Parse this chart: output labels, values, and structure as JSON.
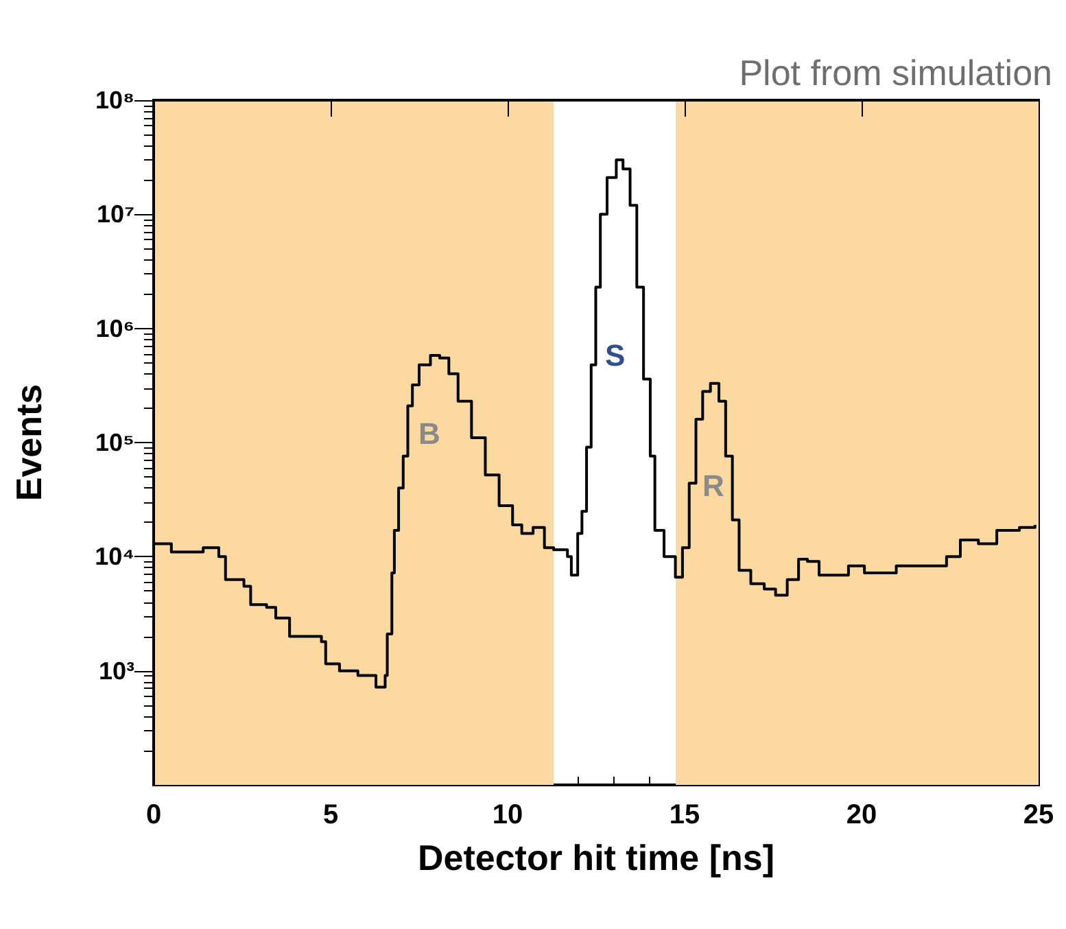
{
  "chart_data": {
    "type": "step",
    "xlabel": "Detector hit time [ns]",
    "ylabel": "Events",
    "log": "y",
    "xlim": [
      0,
      25
    ],
    "xticks": [
      0,
      5,
      10,
      15,
      20,
      25
    ],
    "ylim": [
      100,
      100000000
    ],
    "yticks": [
      {
        "value": 1000,
        "label": "10³"
      },
      {
        "value": 10000,
        "label": "10⁴"
      },
      {
        "value": 100000,
        "label": "10⁵"
      },
      {
        "value": 1000000,
        "label": "10⁶"
      },
      {
        "value": 10000000,
        "label": "10⁷"
      },
      {
        "value": 100000000,
        "label": "10⁸"
      }
    ],
    "grid": false,
    "marker": "none",
    "line_style": "solid",
    "x": [
      0,
      0.5,
      1.4,
      1.84,
      2.03,
      2.55,
      2.74,
      3.19,
      3.45,
      3.84,
      4.1,
      4.74,
      4.86,
      5.25,
      5.77,
      6.28,
      6.54,
      6.6,
      6.73,
      6.8,
      6.92,
      7.05,
      7.18,
      7.31,
      7.5,
      7.82,
      8.08,
      8.34,
      8.6,
      8.98,
      9.37,
      9.76,
      10.14,
      10.4,
      10.72,
      11.04,
      11.3,
      11.69,
      11.8,
      11.91,
      11.98,
      12.1,
      12.23,
      12.36,
      12.49,
      12.62,
      12.81,
      13.07,
      13.26,
      13.46,
      13.65,
      13.84,
      14.03,
      14.16,
      14.42,
      14.74,
      14.94,
      15.13,
      15.32,
      15.51,
      15.73,
      15.97,
      16.16,
      16.35,
      16.54,
      16.87,
      17.25,
      17.57,
      17.9,
      18.22,
      18.47,
      18.8,
      19.3,
      19.63,
      20.08,
      20.98,
      22.01,
      22.4,
      22.79,
      23.3,
      23.82,
      24.46,
      24.9
    ],
    "series": [
      {
        "color": "#000000",
        "values": [
          13000,
          11000,
          12000,
          10000,
          6300,
          5500,
          3800,
          3600,
          2900,
          2000,
          2000,
          1800,
          1150,
          1000,
          910,
          720,
          910,
          2100,
          7200,
          17000,
          40000,
          76000,
          210000,
          320000,
          480000,
          580000,
          550000,
          400000,
          230000,
          110000,
          52000,
          28000,
          19000,
          16000,
          18000,
          12000,
          11500,
          10000,
          6900,
          6900,
          16000,
          25000,
          91000,
          480000,
          2300000,
          10000000,
          21000000,
          30000000,
          25000000,
          12000000,
          2300000,
          360000,
          76000,
          17000,
          10000,
          6600,
          12000,
          44000,
          160000,
          280000,
          330000,
          230000,
          76000,
          21000,
          7600,
          5800,
          5200,
          4600,
          6300,
          9500,
          9100,
          6900,
          6900,
          8300,
          7200,
          8300,
          8300,
          10000,
          14000,
          13000,
          17000,
          18000,
          19000
        ]
      }
    ],
    "bands": [
      {
        "axis": "x",
        "from": 0,
        "to": 11.3,
        "color": "#fbd9a0"
      },
      {
        "axis": "x",
        "from": 14.75,
        "to": 25,
        "color": "#fbd9a0"
      }
    ],
    "annotations": [
      "B",
      "S",
      "R",
      "Plot from simulation"
    ]
  }
}
